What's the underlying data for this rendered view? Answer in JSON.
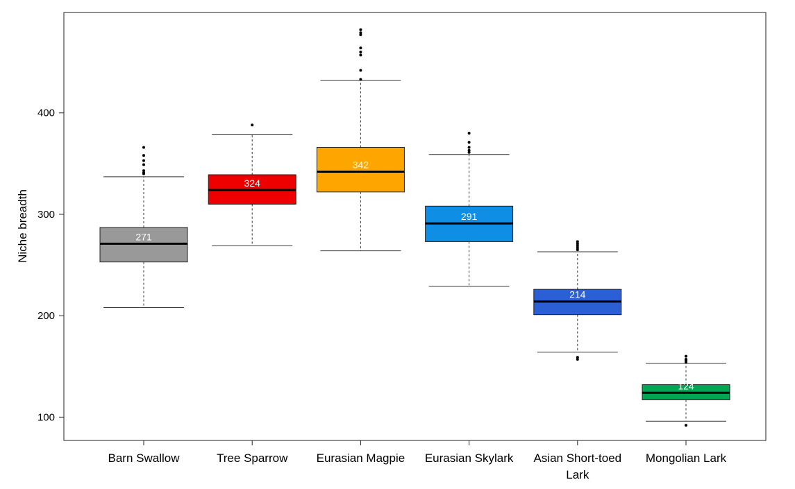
{
  "chart_data": {
    "type": "boxplot",
    "title": "",
    "xlabel": "",
    "ylabel": "Niche breadth",
    "ylim": [
      77,
      499
    ],
    "yticks": [
      100,
      200,
      300,
      400
    ],
    "grid": false,
    "legend": "none",
    "boxes": [
      {
        "label": [
          "Barn Swallow"
        ],
        "color": "#999999",
        "median": 271,
        "median_label": "271",
        "q1": 253,
        "q3": 287,
        "whisker_low": 208,
        "whisker_high": 337,
        "outliers": [
          340,
          341,
          343,
          349,
          353,
          358,
          366
        ]
      },
      {
        "label": [
          "Tree Sparrow"
        ],
        "color": "#ee0000",
        "median": 324,
        "median_label": "324",
        "q1": 310,
        "q3": 339,
        "whisker_low": 269,
        "whisker_high": 379,
        "outliers": [
          388
        ]
      },
      {
        "label": [
          "Eurasian Magpie"
        ],
        "color": "#ffa500",
        "median": 342,
        "median_label": "342",
        "q1": 322,
        "q3": 366,
        "whisker_low": 264,
        "whisker_high": 432,
        "outliers": [
          433,
          442,
          457,
          460,
          464,
          477,
          479,
          482
        ]
      },
      {
        "label": [
          "Eurasian Skylark"
        ],
        "color": "#0f8ee6",
        "median": 291,
        "median_label": "291",
        "q1": 273,
        "q3": 308,
        "whisker_low": 229,
        "whisker_high": 359,
        "outliers": [
          361,
          363,
          366,
          371,
          380
        ]
      },
      {
        "label": [
          "Asian Short-toed",
          "Lark"
        ],
        "color": "#2b5fd6",
        "median": 214,
        "median_label": "214",
        "q1": 201,
        "q3": 226,
        "whisker_low": 164,
        "whisker_high": 263,
        "outliers": [
          157,
          159,
          265,
          267,
          269,
          271,
          273
        ]
      },
      {
        "label": [
          "Mongolian Lark"
        ],
        "color": "#00a651",
        "median": 124,
        "median_label": "124",
        "q1": 117,
        "q3": 132,
        "whisker_low": 96,
        "whisker_high": 153,
        "outliers": [
          92,
          154,
          156,
          157,
          160
        ]
      }
    ]
  }
}
